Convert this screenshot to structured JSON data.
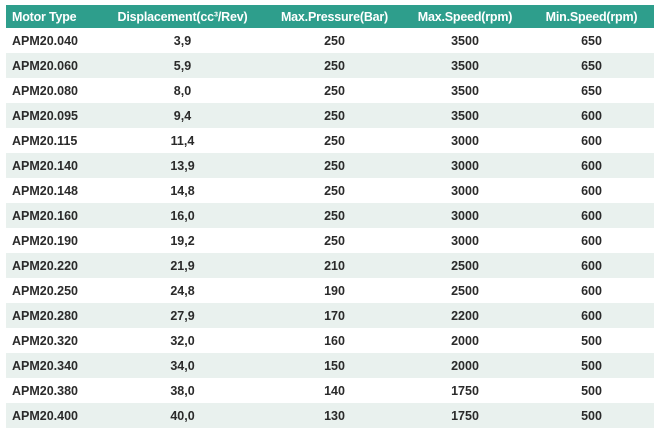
{
  "colors": {
    "header_bg": "#2e9e8c",
    "header_text": "#ffffff",
    "row_alt_bg": "#e9f1ee",
    "row_bg": "#ffffff",
    "cell_text": "#2a2a2a"
  },
  "table": {
    "headers": [
      "Motor Type",
      "Displacement(cc³/Rev)",
      "Max.Pressure(Bar)",
      "Max.Speed(rpm)",
      "Min.Speed(rpm)"
    ],
    "rows": [
      [
        "APM20.040",
        "3,9",
        "250",
        "3500",
        "650"
      ],
      [
        "APM20.060",
        "5,9",
        "250",
        "3500",
        "650"
      ],
      [
        "APM20.080",
        "8,0",
        "250",
        "3500",
        "650"
      ],
      [
        "APM20.095",
        "9,4",
        "250",
        "3500",
        "600"
      ],
      [
        "APM20.115",
        "11,4",
        "250",
        "3000",
        "600"
      ],
      [
        "APM20.140",
        "13,9",
        "250",
        "3000",
        "600"
      ],
      [
        "APM20.148",
        "14,8",
        "250",
        "3000",
        "600"
      ],
      [
        "APM20.160",
        "16,0",
        "250",
        "3000",
        "600"
      ],
      [
        "APM20.190",
        "19,2",
        "250",
        "3000",
        "600"
      ],
      [
        "APM20.220",
        "21,9",
        "210",
        "2500",
        "600"
      ],
      [
        "APM20.250",
        "24,8",
        "190",
        "2500",
        "600"
      ],
      [
        "APM20.280",
        "27,9",
        "170",
        "2200",
        "600"
      ],
      [
        "APM20.320",
        "32,0",
        "160",
        "2000",
        "500"
      ],
      [
        "APM20.340",
        "34,0",
        "150",
        "2000",
        "500"
      ],
      [
        "APM20.380",
        "38,0",
        "140",
        "1750",
        "500"
      ],
      [
        "APM20.400",
        "40,0",
        "130",
        "1750",
        "500"
      ]
    ]
  }
}
